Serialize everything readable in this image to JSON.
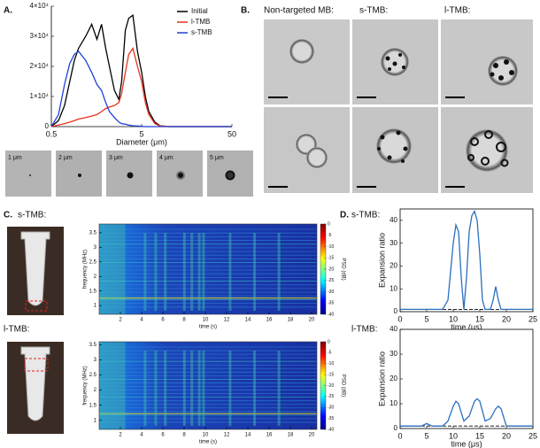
{
  "figure": {
    "panel_labels": [
      "A.",
      "B.",
      "C.",
      "D."
    ],
    "thumbnails": [
      "1 μm",
      "2 μm",
      "3 μm",
      "4 μm",
      "5 μm"
    ],
    "microscopy_headers": [
      "Non-targeted MB:",
      "s-TMB:",
      "l-TMB:"
    ],
    "sample_labels_c": [
      "s-TMB:",
      "l-TMB:"
    ],
    "sample_labels_d": [
      "s-TMB:",
      "l-TMB:"
    ]
  },
  "chart_data": [
    {
      "type": "line",
      "xlabel": "Diameter (μm)",
      "log_x": true,
      "xlim": [
        0.5,
        50
      ],
      "xticks": [
        0.5,
        5,
        50
      ],
      "ylim": [
        0,
        40000
      ],
      "yticks": [
        0,
        {
          "value": 10000,
          "label": "1×10⁴"
        },
        {
          "value": 20000,
          "label": "2×10⁴"
        },
        {
          "value": 30000,
          "label": "3×10⁴"
        },
        {
          "value": 40000,
          "label": "4×10⁴"
        }
      ],
      "legend": "upper right",
      "x": [
        0.5,
        0.6,
        0.7,
        0.8,
        0.9,
        1.0,
        1.2,
        1.4,
        1.6,
        1.8,
        2.0,
        2.2,
        2.5,
        2.8,
        3.0,
        3.3,
        3.6,
        4.0,
        4.5,
        5,
        5.5,
        6,
        7,
        8,
        10,
        15,
        20,
        30,
        50
      ],
      "series": [
        {
          "name": "Initial",
          "color": "#000000",
          "values": [
            0,
            2000,
            7000,
            15000,
            22000,
            26000,
            30000,
            34000,
            29000,
            34000,
            26000,
            20000,
            12000,
            9000,
            15000,
            32000,
            36000,
            37000,
            25000,
            18000,
            10000,
            5000,
            1500,
            300,
            0,
            0,
            0,
            0,
            0
          ]
        },
        {
          "name": "l-TMB",
          "color": "#e8321e",
          "values": [
            0,
            500,
            1000,
            1500,
            2000,
            2500,
            3000,
            3500,
            4000,
            5000,
            6000,
            6500,
            7000,
            8000,
            11000,
            18000,
            24000,
            26000,
            20000,
            15000,
            8000,
            4000,
            1000,
            200,
            0,
            0,
            0,
            0,
            0
          ]
        },
        {
          "name": "s-TMB",
          "color": "#1f3fd8",
          "values": [
            0,
            4000,
            14000,
            21000,
            24000,
            25000,
            22000,
            18000,
            14000,
            12000,
            8000,
            5000,
            3000,
            1500,
            1000,
            800,
            500,
            300,
            200,
            100,
            0,
            0,
            0,
            0,
            0,
            0,
            0,
            0,
            0
          ]
        }
      ]
    },
    {
      "type": "spectrogram",
      "xlabel": "time (s)",
      "ylabel": "frequency (MHz)",
      "colorbar_label": "PSD (dB)",
      "xlim": [
        0,
        20.5
      ],
      "xticks": [
        2,
        4,
        6,
        8,
        10,
        12,
        14,
        16,
        18,
        20
      ],
      "ylim": [
        0.7,
        3.8
      ],
      "yticks": [
        1,
        1.5,
        2,
        2.5,
        3,
        3.5
      ],
      "clim": [
        -40,
        0
      ],
      "cticks": [
        0,
        -5,
        -10,
        -15,
        -20,
        -25,
        -30,
        -35,
        -40
      ]
    },
    {
      "type": "spectrogram",
      "xlabel": "time (s)",
      "ylabel": "frequency (MHz)",
      "colorbar_label": "PSD (dB)",
      "xlim": [
        0,
        20.5
      ],
      "xticks": [
        2,
        4,
        6,
        8,
        10,
        12,
        14,
        16,
        18,
        20
      ],
      "ylim": [
        0.7,
        3.6
      ],
      "yticks": [
        1,
        1.5,
        2,
        2.5,
        3,
        3.5
      ],
      "clim": [
        -40,
        0
      ],
      "cticks": [
        0,
        -5,
        -10,
        -15,
        -20,
        -25,
        -30,
        -35,
        -40
      ]
    },
    {
      "type": "line",
      "xlabel": "time (μs)",
      "ylabel": "Expansion ratio",
      "xlim": [
        0,
        25
      ],
      "xticks": [
        0,
        5,
        10,
        15,
        20,
        25
      ],
      "ylim": [
        0,
        45
      ],
      "yticks": [
        0,
        10,
        20,
        30,
        40
      ],
      "hline": 1,
      "color": "#2a6fc0",
      "x": [
        0,
        7,
        8,
        9,
        10,
        10.5,
        11,
        11.5,
        12,
        12.5,
        13,
        13.5,
        14,
        14.5,
        15,
        15.5,
        16,
        17,
        17.5,
        18,
        18.5,
        19,
        25
      ],
      "values": [
        1,
        1,
        1,
        5,
        30,
        38,
        35,
        15,
        1,
        15,
        35,
        42,
        44,
        40,
        25,
        5,
        1,
        1,
        5,
        11,
        5,
        1,
        1
      ]
    },
    {
      "type": "line",
      "xlabel": "time (μs)",
      "ylabel": "Expansion ratio",
      "xlim": [
        0,
        25
      ],
      "xticks": [
        0,
        5,
        10,
        15,
        20,
        25
      ],
      "ylim": [
        0,
        40
      ],
      "yticks": [
        0,
        10,
        20,
        30,
        40
      ],
      "hline": 1,
      "color": "#2a6fc0",
      "x": [
        0,
        4,
        5,
        6,
        8,
        9,
        10,
        10.5,
        11,
        12,
        13,
        14,
        14.5,
        15,
        16,
        17,
        18,
        18.5,
        19,
        20,
        25
      ],
      "values": [
        1,
        1,
        2,
        1,
        1,
        3,
        9,
        11,
        10,
        3,
        5,
        11,
        12,
        11,
        3,
        4,
        8,
        9,
        8,
        1,
        1
      ]
    }
  ]
}
